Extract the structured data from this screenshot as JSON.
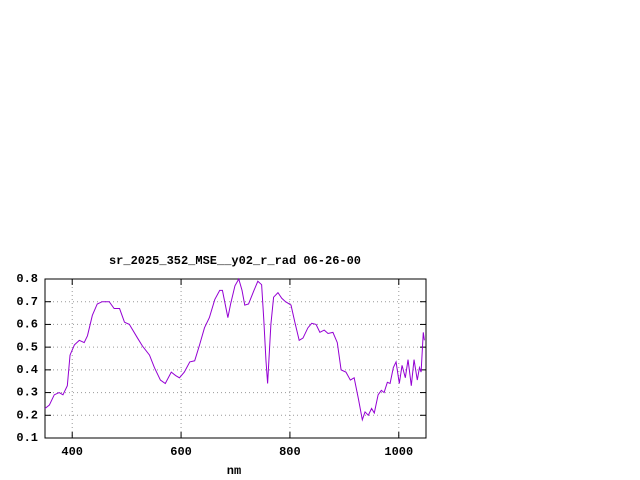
{
  "chart_data": {
    "type": "line",
    "title": "sr_2025_352_MSE__y02_r_rad 06-26-00",
    "x_label": "nm",
    "x": [
      350,
      358,
      367,
      376,
      383,
      391,
      396,
      404,
      413,
      422,
      428,
      437,
      446,
      455,
      468,
      477,
      487,
      496,
      505,
      520,
      529,
      542,
      551,
      562,
      571,
      582,
      590,
      597,
      606,
      616,
      625,
      634,
      643,
      652,
      662,
      671,
      676,
      686,
      691,
      699,
      706,
      712,
      717,
      724,
      734,
      741,
      748,
      752,
      756,
      759,
      765,
      770,
      778,
      785,
      792,
      802,
      809,
      817,
      824,
      833,
      840,
      848,
      855,
      863,
      870,
      879,
      887,
      894,
      903,
      911,
      918,
      926,
      933,
      938,
      944,
      950,
      955,
      962,
      968,
      973,
      979,
      984,
      990,
      995,
      1001,
      1006,
      1012,
      1017,
      1023,
      1028,
      1034,
      1038,
      1041,
      1045,
      1047
    ],
    "series": [
      {
        "color": "#9400d3",
        "values": [
          0.23,
          0.245,
          0.29,
          0.3,
          0.29,
          0.33,
          0.465,
          0.51,
          0.53,
          0.52,
          0.55,
          0.64,
          0.69,
          0.7,
          0.7,
          0.67,
          0.67,
          0.61,
          0.6,
          0.54,
          0.505,
          0.465,
          0.41,
          0.355,
          0.34,
          0.39,
          0.375,
          0.365,
          0.39,
          0.435,
          0.44,
          0.51,
          0.585,
          0.63,
          0.71,
          0.75,
          0.75,
          0.63,
          0.69,
          0.77,
          0.8,
          0.75,
          0.685,
          0.69,
          0.75,
          0.79,
          0.775,
          0.62,
          0.44,
          0.34,
          0.6,
          0.72,
          0.74,
          0.715,
          0.7,
          0.685,
          0.61,
          0.53,
          0.54,
          0.585,
          0.605,
          0.6,
          0.565,
          0.575,
          0.56,
          0.565,
          0.52,
          0.4,
          0.39,
          0.355,
          0.365,
          0.27,
          0.18,
          0.215,
          0.2,
          0.23,
          0.21,
          0.29,
          0.31,
          0.3,
          0.345,
          0.34,
          0.41,
          0.435,
          0.34,
          0.42,
          0.365,
          0.445,
          0.33,
          0.445,
          0.355,
          0.41,
          0.39,
          0.565,
          0.53
        ]
      }
    ],
    "xlim": [
      350,
      1050
    ],
    "ylim": [
      0.1,
      0.8
    ],
    "xticks": [
      400,
      600,
      800,
      1000
    ],
    "yticks": [
      0.1,
      0.2,
      0.3,
      0.4,
      0.5,
      0.6,
      0.7,
      0.8
    ],
    "grid": true
  }
}
